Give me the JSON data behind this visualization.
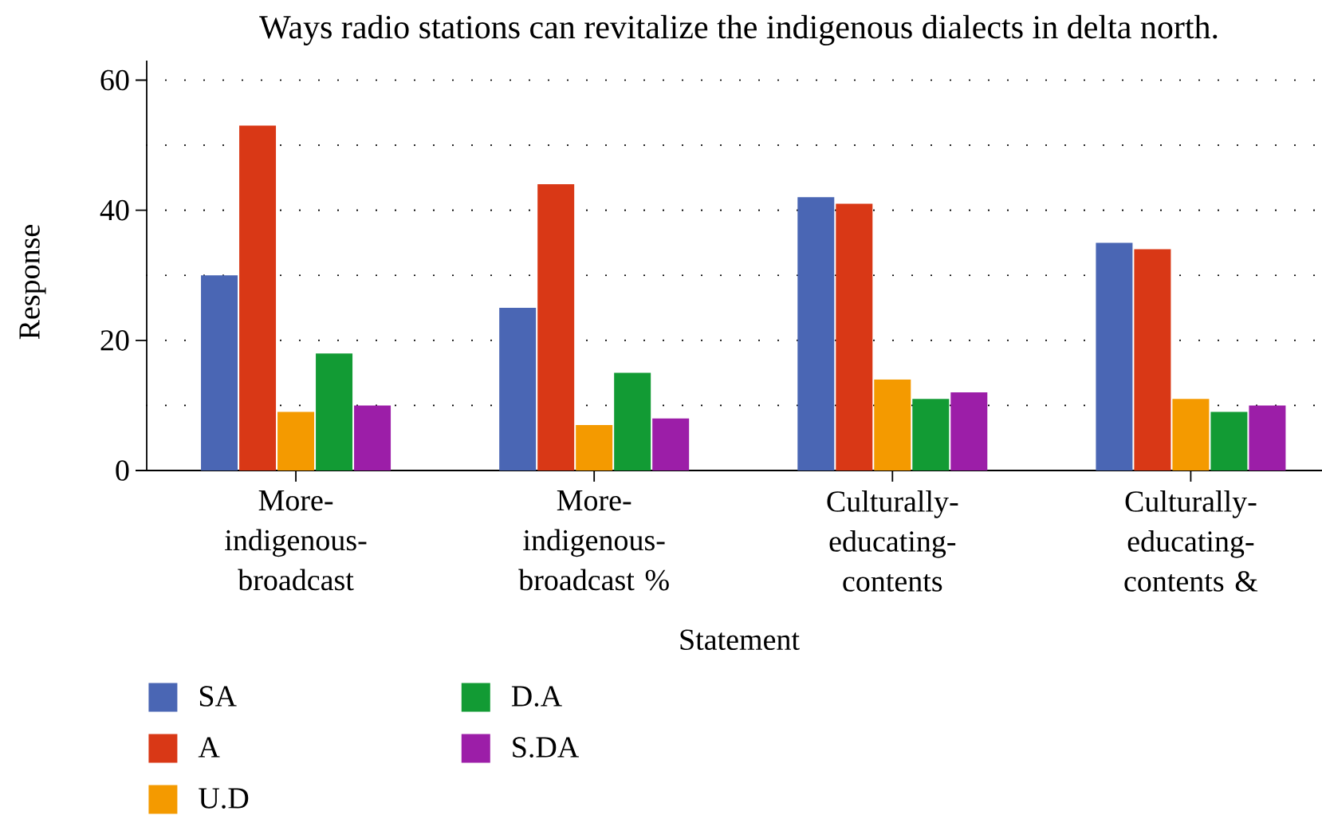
{
  "chart_data": {
    "type": "bar",
    "title": "Ways radio stations can revitalize the indigenous dialects in delta north.",
    "xlabel": "Statement",
    "ylabel": "Response",
    "categories": [
      "More-indigenous-broadcast",
      "More-indigenous-broadcast %",
      "Culturally-educating-contents",
      "Culturally-educating-contents &"
    ],
    "series": [
      {
        "name": "SA",
        "color": "#4a66b4",
        "values": [
          30,
          25,
          42,
          35
        ]
      },
      {
        "name": "A",
        "color": "#d93816",
        "values": [
          53,
          44,
          41,
          34
        ]
      },
      {
        "name": "U.D",
        "color": "#f49a00",
        "values": [
          9,
          7,
          14,
          11
        ]
      },
      {
        "name": "D.A",
        "color": "#129b34",
        "values": [
          18,
          15,
          11,
          9
        ]
      },
      {
        "name": "S.DA",
        "color": "#9c1ea8",
        "values": [
          10,
          8,
          12,
          10
        ]
      }
    ],
    "ylim": [
      0,
      63
    ],
    "yticks": [
      0,
      {
        "value": 10,
        "label": null
      },
      20,
      {
        "value": 30,
        "label": null
      },
      40,
      {
        "value": 50,
        "label": null
      },
      60
    ],
    "grid": "y",
    "legend": "bottom left"
  }
}
